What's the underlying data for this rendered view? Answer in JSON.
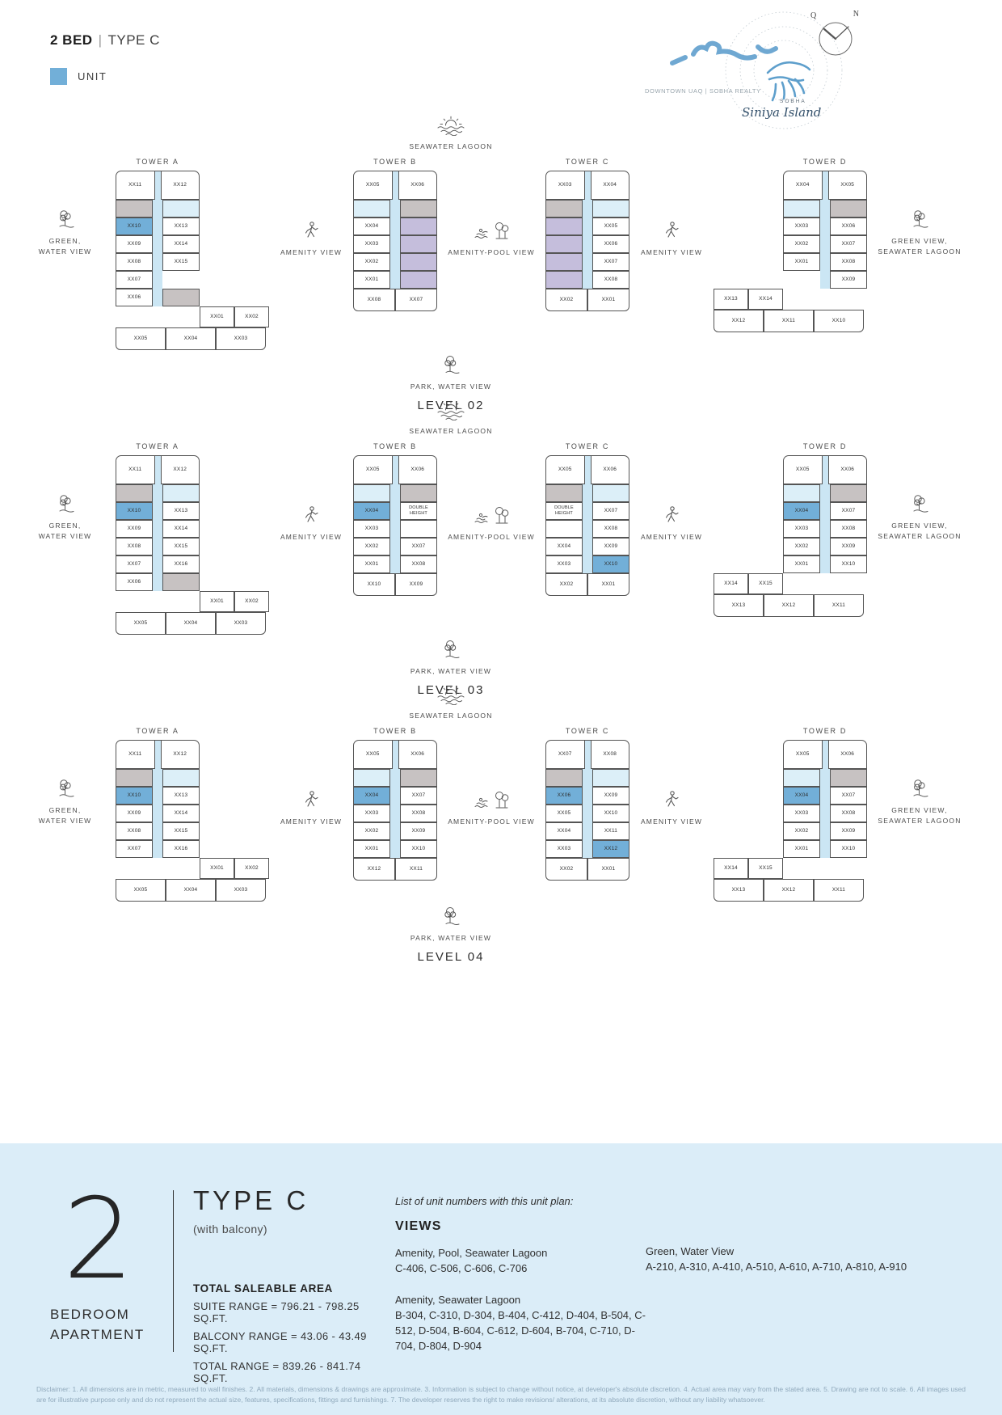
{
  "header": {
    "title_bold": "2 BED",
    "title_sep": "|",
    "title_rest": "TYPE C",
    "legend_label": "UNIT"
  },
  "branding": {
    "partner": "DOWNTOWN UAQ | SOBHA REALTY",
    "brand": "SOBHA",
    "script": "Siniya Island",
    "compass_q": "Q",
    "compass_n": "N"
  },
  "colors": {
    "unit_highlight": "#72AFD8",
    "corridor": "#CBE6F4",
    "balcony": "#DCEFF8",
    "other_unit": "#C5BEDC",
    "service": "#C7C2C2",
    "section_bg": "#DBEDF8"
  },
  "levels": [
    {
      "label": "LEVEL 02",
      "top_view": {
        "label": "SEAWATER LAGOON",
        "icon": "lagoon-icon"
      },
      "bottom_view": {
        "label": "PARK, WATER VIEW",
        "icon": "park-tree-icon"
      },
      "left_view": {
        "lines": [
          "GREEN,",
          "WATER VIEW"
        ],
        "icon": "tree-icon"
      },
      "right_view": {
        "lines": [
          "GREEN VIEW,",
          "SEAWATER LAGOON"
        ],
        "icon": "tree-icon"
      },
      "amenities": [
        {
          "label": "AMENITY VIEW",
          "icon": "person-icon"
        },
        {
          "label": "AMENITY-POOL VIEW",
          "icon": "pool-trees-icon"
        },
        {
          "label": "AMENITY VIEW",
          "icon": "person-icon"
        }
      ],
      "towers": [
        {
          "name": "TOWER A",
          "layout": "l-right",
          "top": [
            "XX11",
            "XX12"
          ],
          "rows": [
            [
              {
                "type": "service"
              },
              {
                "type": "balcony"
              }
            ],
            [
              {
                "label": "XX10",
                "type": "hl"
              },
              "XX13"
            ],
            [
              "XX09",
              "XX14"
            ],
            [
              "XX08",
              "XX15"
            ],
            [
              "XX07",
              {
                "type": "empty"
              }
            ],
            [
              "XX06",
              {
                "type": "service"
              }
            ]
          ],
          "wing": [
            "XX01",
            "XX02"
          ],
          "bottom": [
            "XX05",
            "XX04",
            "XX03"
          ]
        },
        {
          "name": "TOWER B",
          "layout": "slab-only",
          "top": [
            "XX05",
            "XX06"
          ],
          "rows": [
            [
              {
                "type": "balcony"
              },
              {
                "type": "service"
              }
            ],
            [
              "XX04",
              {
                "type": "purple"
              }
            ],
            [
              "XX03",
              {
                "type": "purple"
              }
            ],
            [
              "XX02",
              {
                "type": "purple"
              }
            ],
            [
              "XX01",
              {
                "type": "purple"
              }
            ]
          ],
          "bottom": [
            "XX08",
            "XX07"
          ]
        },
        {
          "name": "TOWER C",
          "layout": "slab-only",
          "top": [
            "XX03",
            "XX04"
          ],
          "rows": [
            [
              {
                "type": "service"
              },
              {
                "type": "balcony"
              }
            ],
            [
              {
                "type": "purple"
              },
              "XX05"
            ],
            [
              {
                "type": "purple"
              },
              "XX06"
            ],
            [
              {
                "type": "purple"
              },
              "XX07"
            ],
            [
              {
                "type": "purple"
              },
              "XX08"
            ]
          ],
          "bottom": [
            "XX02",
            "XX01"
          ]
        },
        {
          "name": "TOWER D",
          "layout": "l-left",
          "top": [
            "XX04",
            "XX05"
          ],
          "rows": [
            [
              {
                "type": "balcony"
              },
              {
                "type": "service"
              }
            ],
            [
              "XX03",
              "XX06"
            ],
            [
              "XX02",
              "XX07"
            ],
            [
              "XX01",
              "XX08"
            ],
            [
              {
                "type": "empty"
              },
              "XX09"
            ]
          ],
          "wing": [
            "XX13",
            "XX14"
          ],
          "bottom": [
            "XX12",
            "XX11",
            "XX10"
          ]
        }
      ]
    },
    {
      "label": "LEVEL 03",
      "top_view": {
        "label": "SEAWATER LAGOON",
        "icon": "lagoon-icon"
      },
      "bottom_view": {
        "label": "PARK, WATER VIEW",
        "icon": "park-tree-icon"
      },
      "left_view": {
        "lines": [
          "GREEN,",
          "WATER VIEW"
        ],
        "icon": "tree-icon"
      },
      "right_view": {
        "lines": [
          "GREEN VIEW,",
          "SEAWATER LAGOON"
        ],
        "icon": "tree-icon"
      },
      "amenities": [
        {
          "label": "AMENITY VIEW",
          "icon": "person-icon"
        },
        {
          "label": "AMENITY-POOL VIEW",
          "icon": "pool-trees-icon"
        },
        {
          "label": "AMENITY VIEW",
          "icon": "person-icon"
        }
      ],
      "towers": [
        {
          "name": "TOWER A",
          "layout": "l-right",
          "top": [
            "XX11",
            "XX12"
          ],
          "rows": [
            [
              {
                "type": "service"
              },
              {
                "type": "balcony"
              }
            ],
            [
              {
                "label": "XX10",
                "type": "hl"
              },
              "XX13"
            ],
            [
              "XX09",
              "XX14"
            ],
            [
              "XX08",
              "XX15"
            ],
            [
              "XX07",
              "XX16"
            ],
            [
              "XX06",
              {
                "type": "service"
              }
            ]
          ],
          "wing": [
            "XX01",
            "XX02"
          ],
          "bottom": [
            "XX05",
            "XX04",
            "XX03"
          ]
        },
        {
          "name": "TOWER B",
          "layout": "slab-only",
          "top": [
            "XX05",
            "XX06"
          ],
          "rows": [
            [
              {
                "type": "balcony"
              },
              {
                "type": "service"
              }
            ],
            [
              {
                "label": "XX04",
                "type": "hl"
              },
              {
                "label": "DOUBLE HEIGHT",
                "type": "dh"
              }
            ],
            [
              "XX03",
              {
                "type": "plain"
              }
            ],
            [
              "XX02",
              "XX07"
            ],
            [
              "XX01",
              "XX08"
            ]
          ],
          "bottom": [
            "XX10",
            "XX09"
          ]
        },
        {
          "name": "TOWER C",
          "layout": "slab-only",
          "top": [
            "XX05",
            "XX06"
          ],
          "rows": [
            [
              {
                "type": "service"
              },
              {
                "type": "balcony"
              }
            ],
            [
              {
                "label": "DOUBLE HEIGHT",
                "type": "dh"
              },
              "XX07"
            ],
            [
              {
                "type": "plain"
              },
              "XX08"
            ],
            [
              "XX04",
              "XX09"
            ],
            [
              "XX03",
              {
                "label": "XX10",
                "type": "hl"
              }
            ]
          ],
          "bottom": [
            "XX02",
            "XX01"
          ]
        },
        {
          "name": "TOWER D",
          "layout": "l-left",
          "top": [
            "XX05",
            "XX06"
          ],
          "rows": [
            [
              {
                "type": "balcony"
              },
              {
                "type": "service"
              }
            ],
            [
              {
                "label": "XX04",
                "type": "hl"
              },
              "XX07"
            ],
            [
              "XX03",
              "XX08"
            ],
            [
              "XX02",
              "XX09"
            ],
            [
              "XX01",
              "XX10"
            ]
          ],
          "wing": [
            "XX14",
            "XX15"
          ],
          "bottom": [
            "XX13",
            "XX12",
            "XX11"
          ]
        }
      ]
    },
    {
      "label": "LEVEL 04",
      "top_view": {
        "label": "SEAWATER LAGOON",
        "icon": "lagoon-icon"
      },
      "bottom_view": {
        "label": "PARK, WATER VIEW",
        "icon": "park-tree-icon"
      },
      "left_view": {
        "lines": [
          "GREEN,",
          "WATER VIEW"
        ],
        "icon": "tree-icon"
      },
      "right_view": {
        "lines": [
          "GREEN VIEW,",
          "SEAWATER LAGOON"
        ],
        "icon": "tree-icon"
      },
      "amenities": [
        {
          "label": "AMENITY VIEW",
          "icon": "person-icon"
        },
        {
          "label": "AMENITY-POOL VIEW",
          "icon": "pool-trees-icon"
        },
        {
          "label": "AMENITY VIEW",
          "icon": "person-icon"
        }
      ],
      "towers": [
        {
          "name": "TOWER A",
          "layout": "l-right",
          "top": [
            "XX11",
            "XX12"
          ],
          "rows": [
            [
              {
                "type": "service"
              },
              {
                "type": "balcony"
              }
            ],
            [
              {
                "label": "XX10",
                "type": "hl"
              },
              "XX13"
            ],
            [
              "XX09",
              "XX14"
            ],
            [
              "XX08",
              "XX15"
            ],
            [
              "XX07",
              "XX16"
            ]
          ],
          "wing": [
            "XX01",
            "XX02"
          ],
          "bottom": [
            "XX05",
            "XX04",
            "XX03"
          ]
        },
        {
          "name": "TOWER B",
          "layout": "slab-only",
          "top": [
            "XX05",
            "XX06"
          ],
          "rows": [
            [
              {
                "type": "balcony"
              },
              {
                "type": "service"
              }
            ],
            [
              {
                "label": "XX04",
                "type": "hl"
              },
              "XX07"
            ],
            [
              "XX03",
              "XX08"
            ],
            [
              "XX02",
              "XX09"
            ],
            [
              "XX01",
              "XX10"
            ]
          ],
          "bottom": [
            "XX12",
            "XX11"
          ]
        },
        {
          "name": "TOWER C",
          "layout": "slab-only",
          "top": [
            "XX07",
            "XX08"
          ],
          "rows": [
            [
              {
                "type": "service"
              },
              {
                "type": "balcony"
              }
            ],
            [
              {
                "label": "XX06",
                "type": "hl"
              },
              "XX09"
            ],
            [
              "XX05",
              "XX10"
            ],
            [
              "XX04",
              "XX11"
            ],
            [
              "XX03",
              {
                "label": "XX12",
                "type": "hl"
              }
            ]
          ],
          "bottom": [
            "XX02",
            "XX01"
          ]
        },
        {
          "name": "TOWER D",
          "layout": "l-left",
          "top": [
            "XX05",
            "XX06"
          ],
          "rows": [
            [
              {
                "type": "balcony"
              },
              {
                "type": "service"
              }
            ],
            [
              {
                "label": "XX04",
                "type": "hl"
              },
              "XX07"
            ],
            [
              "XX03",
              "XX08"
            ],
            [
              "XX02",
              "XX09"
            ],
            [
              "XX01",
              "XX10"
            ]
          ],
          "wing": [
            "XX14",
            "XX15"
          ],
          "bottom": [
            "XX13",
            "XX12",
            "XX11"
          ]
        }
      ]
    }
  ],
  "details": {
    "number": "2",
    "apartment_line1": "BEDROOM",
    "apartment_line2": "APARTMENT",
    "type_title": "TYPE C",
    "type_subtitle": "(with balcony)",
    "area_title": "TOTAL SALEABLE AREA",
    "area_lines": [
      "SUITE RANGE = 796.21 - 798.25 SQ.FT.",
      "BALCONY RANGE = 43.06 - 43.49 SQ.FT.",
      "TOTAL RANGE = 839.26 - 841.74 SQ.FT."
    ]
  },
  "views_section": {
    "intro": "List of unit numbers with this unit plan:",
    "title": "VIEWS",
    "groups": [
      {
        "name": "Amenity, Pool, Seawater Lagoon",
        "units": "C-406, C-506, C-606, C-706"
      },
      {
        "name": "Amenity, Seawater Lagoon",
        "units": "B-304, C-310, D-304, B-404, C-412, D-404, B-504, C-512, D-504, B-604, C-612, D-604, B-704, C-710, D-704, D-804, D-904"
      },
      {
        "name": "Green, Water View",
        "units": "A-210, A-310, A-410, A-510, A-610, A-710, A-810, A-910"
      }
    ]
  },
  "disclaimer": "Disclaimer: 1. All dimensions are in metric, measured to wall finishes. 2. All materials, dimensions & drawings are approximate. 3. Information is subject to change without notice, at developer's absolute discretion. 4. Actual area may vary from the stated area. 5. Drawing are not to scale. 6. All images used are for illustrative purpose only and do not represent the actual size, features, specifications, fittings and furnishings. 7. The developer reserves the right to make revisions/ alterations, at its absolute discretion, without any liability whatsoever."
}
